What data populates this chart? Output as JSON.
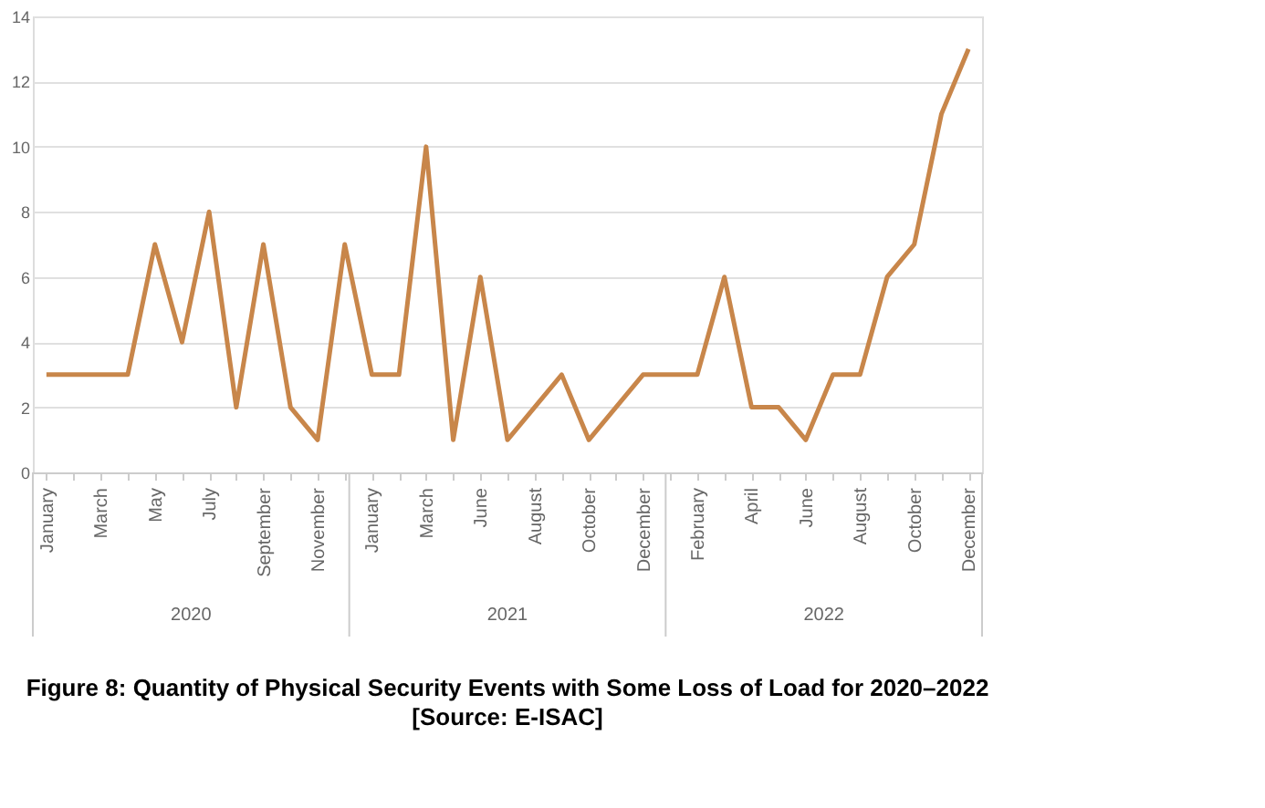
{
  "chart_data": {
    "type": "line",
    "title": "Figure 8: Quantity of Physical Security Events with Some Loss of Load for 2020–2022",
    "categories": [
      "January",
      null,
      "March",
      null,
      "May",
      null,
      "July",
      null,
      "September",
      null,
      "November",
      null,
      "January",
      null,
      "March",
      null,
      "June",
      null,
      "August",
      null,
      "October",
      null,
      "December",
      null,
      "February",
      null,
      "April",
      null,
      "June",
      null,
      "August",
      null,
      "October",
      null,
      "December"
    ],
    "series": [
      {
        "color": "#c8864a",
        "values": [
          3,
          3,
          3,
          3,
          7,
          4,
          8,
          2,
          7,
          2,
          1,
          7,
          3,
          3,
          10,
          1,
          6,
          1,
          2,
          3,
          1,
          2,
          3,
          3,
          3,
          6,
          2,
          2,
          1,
          3,
          3,
          6,
          7,
          11,
          13
        ]
      }
    ],
    "ylim": [
      0,
      14
    ],
    "yticks": [
      0,
      2,
      4,
      6,
      8,
      10,
      12,
      14
    ],
    "grid": "y",
    "marker": "none",
    "line_style": "solid",
    "annotations": [
      "2020",
      "2021",
      "2022",
      "[Source: E-ISAC]"
    ]
  }
}
